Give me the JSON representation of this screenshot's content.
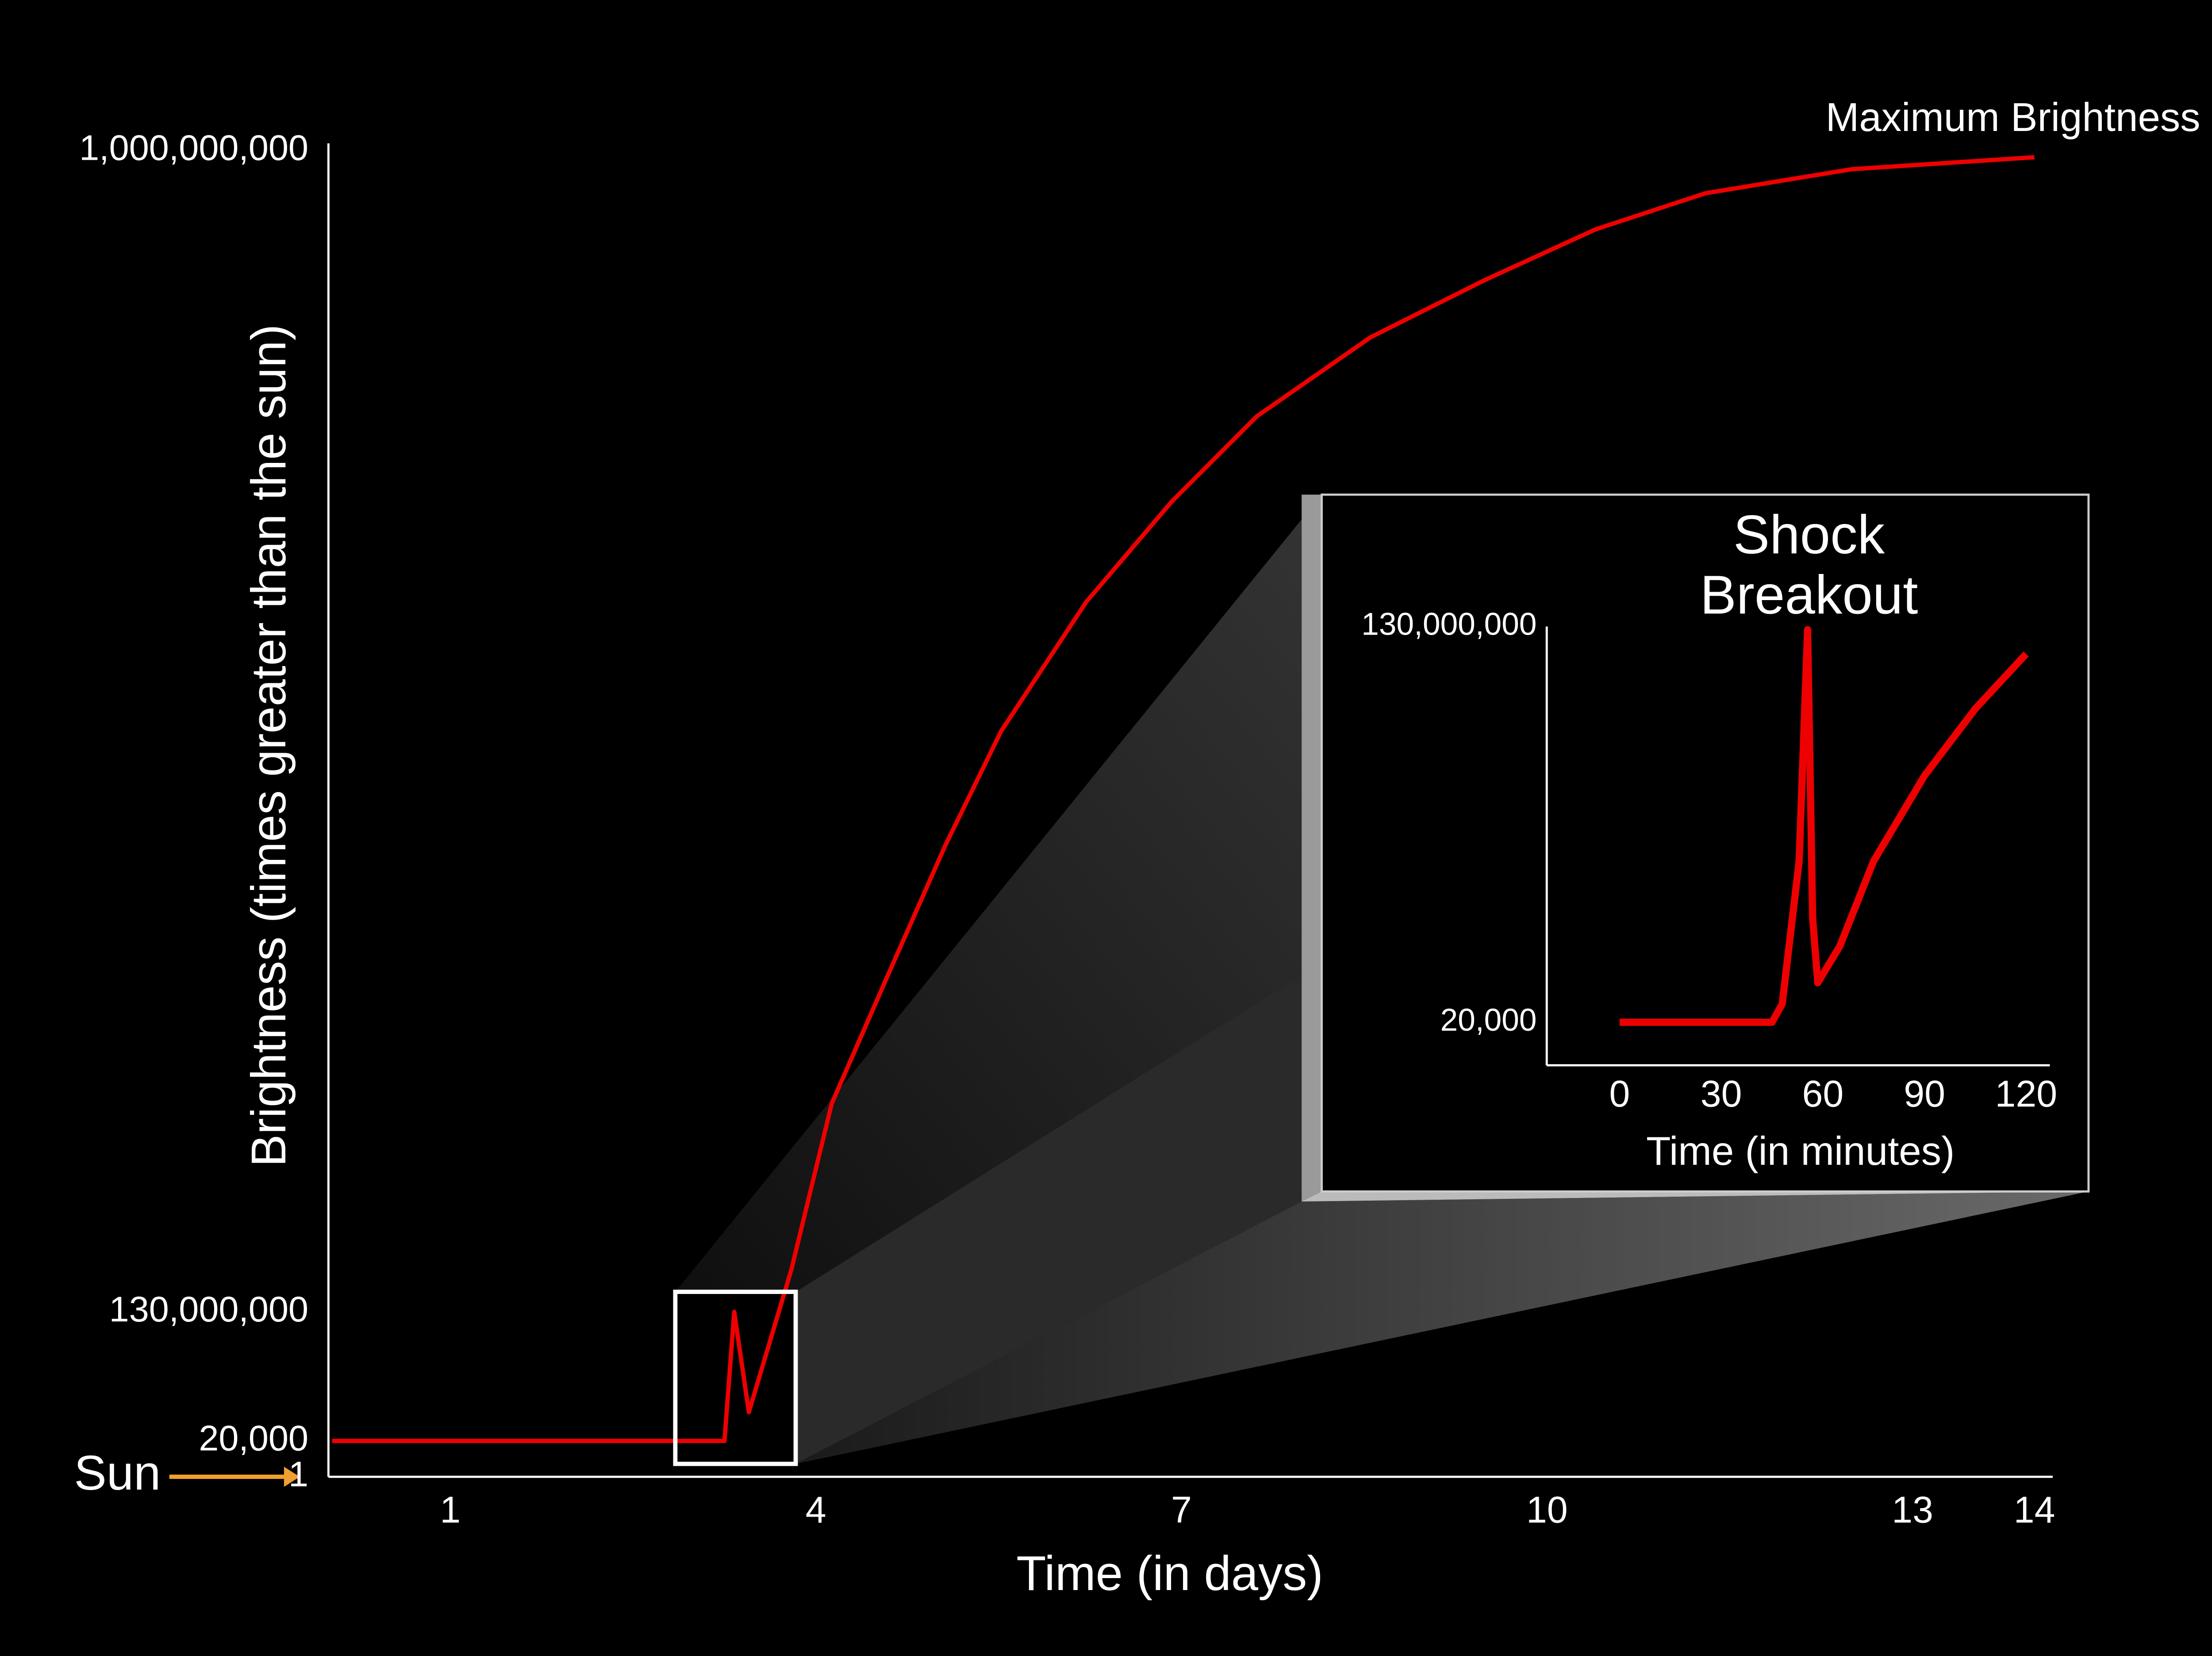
{
  "chart_data": [
    {
      "type": "line",
      "x_label": "Time (in days)",
      "y_label": "Brightness  (times greater than the sun)",
      "annotations": [
        "Maximum Brightness",
        "Sun"
      ],
      "color": "#ee0000",
      "xlim": [
        0,
        14.15
      ],
      "xticks": [
        1,
        4,
        7,
        10,
        13,
        14
      ],
      "ylim": [
        1,
        1000000000
      ],
      "yticks": [
        1,
        {
          "value": 20000,
          "label": "20,000"
        },
        {
          "value": 130000000,
          "label": "130,000,000"
        },
        {
          "value": 1000000000,
          "label": "1,000,000,000"
        }
      ],
      "x": [
        0.03,
        0.6,
        1.2,
        1.8,
        2.4,
        2.8,
        3.25,
        3.33,
        3.45,
        3.8,
        4.13,
        4.59,
        5.06,
        5.52,
        6.22,
        6.92,
        7.62,
        8.55,
        9.49,
        10.4,
        11.3,
        12.5,
        14.0
      ],
      "values": [
        20000,
        20000,
        20000,
        20000,
        20000,
        20000,
        20000,
        130000000,
        29000000,
        162000000,
        286000000,
        382000000,
        479000000,
        565000000,
        662000000,
        737000000,
        801000000,
        860000000,
        903000000,
        941000000,
        968000000,
        986000000,
        995000000
      ]
    },
    {
      "type": "line",
      "title": [
        "Shock",
        "Breakout"
      ],
      "x_label": "Time (in minutes)",
      "color": "#ee0000",
      "xlim": [
        -21.5,
        127
      ],
      "xticks": [
        0,
        30,
        60,
        90,
        120
      ],
      "yticks": [
        {
          "value": 20000,
          "label": "20,000"
        },
        {
          "value": 130000000,
          "label": "130,000,000"
        }
      ],
      "x": [
        0,
        15,
        30,
        45,
        48,
        53,
        55.5,
        57,
        58.5,
        65,
        75,
        90,
        105,
        120
      ],
      "values": [
        20000,
        20000,
        20000,
        20000,
        6000000,
        53000000,
        129000000,
        34000000,
        13000000,
        25000000,
        53000000,
        81000000,
        103000000,
        121000000
      ]
    }
  ]
}
